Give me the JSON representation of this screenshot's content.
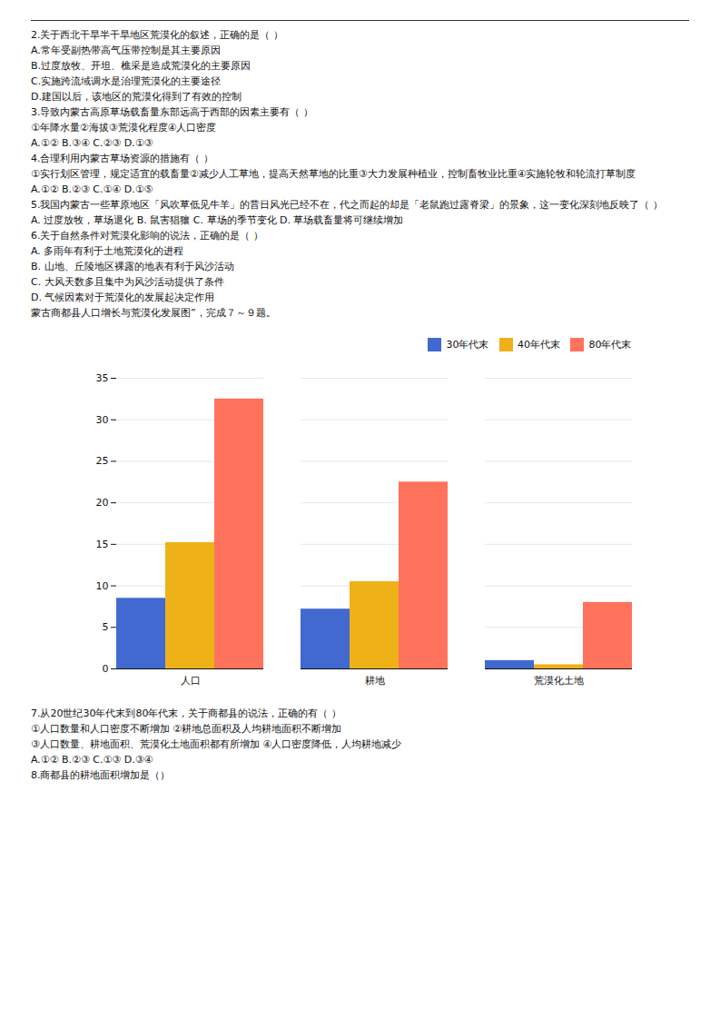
{
  "chart_data": {
    "type": "bar",
    "subtitle": [
      "2.关于西北干旱半干旱地区荒漠化的叙述，正确的是（  ）",
      "A.常年受副热带高气压带控制是其主要原因",
      "B.过度放牧、开坦、樵采是造成荒漠化的主要原因",
      "C.实施跨流域调水是治理荒漠化的主要途径",
      "D.建国以后，该地区的荒漠化得到了有效的控制",
      "3.导致内蒙古高原草场载畜量东部远高于西部的因素主要有（  ）",
      "①年降水量②海拔③荒漠化程度④人口密度",
      "A.①②  B.③④  C.②③  D.①③",
      "4.合理利用内蒙古草场资源的措施有（  ）",
      "①实行划区管理，规定适宜的载畜量②减少人工草地，提高天然草地的比重③大力发展种植业，控制畜牧业比重④实施轮牧和轮流打草制度",
      "A.①②  B.②③  C.①④  D.①⑤",
      "5.我国内蒙古一些草原地区「风吹草低见牛羊」的昔日风光已经不在，代之而起的却是「老鼠跑过露脊梁」的景象，这一变化深刻地反映了（  ）",
      "A. 过度放牧，草场退化  B. 鼠害猖獽  C. 草场的季节变化  D. 草场载畜量将可继续增加",
      "6.关于自然条件对荒漠化影响的说法，正确的是（  ）",
      "A. 多雨年有利于土地荒漠化的进程",
      "B. 山地、丘陵地区裸露的地表有利于风沙活动",
      "C. 大风天数多且集中为风沙活动提供了条件",
      "D. 气候因素对于荒漠化的发展起决定作用",
      "蒙古商都县人口增长与荒漠化发展图”，完成７～９题。"
    ],
    "annotations": [
      "7.从20世纪30年代末到80年代末，关于商都县的说法，正确的有（  ）",
      "①人口数量和人口密度不断增加    ②耕地总面积及人均耕地面积不断增加",
      "③人口数量、耕地面积、荒漠化土地面积都有所增加   ④人口密度降低，人均耕地减少",
      "A.①②  B.②③  C.①③  D.③④",
      "8.商都县的耕地面积增加是（）"
    ],
    "categories": [
      "人口",
      "耕地",
      "荒漠化土地"
    ],
    "series": [
      {
        "name": "30年代末",
        "values": [
          8.5,
          7.2,
          1.0
        ]
      },
      {
        "name": "40年代末",
        "values": [
          15.2,
          10.5,
          0.5
        ]
      },
      {
        "name": "80年代末",
        "values": [
          32.5,
          22.5,
          8.0
        ]
      }
    ],
    "ylim": [
      0,
      35
    ],
    "yticks": [
      0,
      5,
      10,
      15,
      20,
      25,
      30,
      35
    ],
    "grid": true,
    "legend": "upper right"
  }
}
